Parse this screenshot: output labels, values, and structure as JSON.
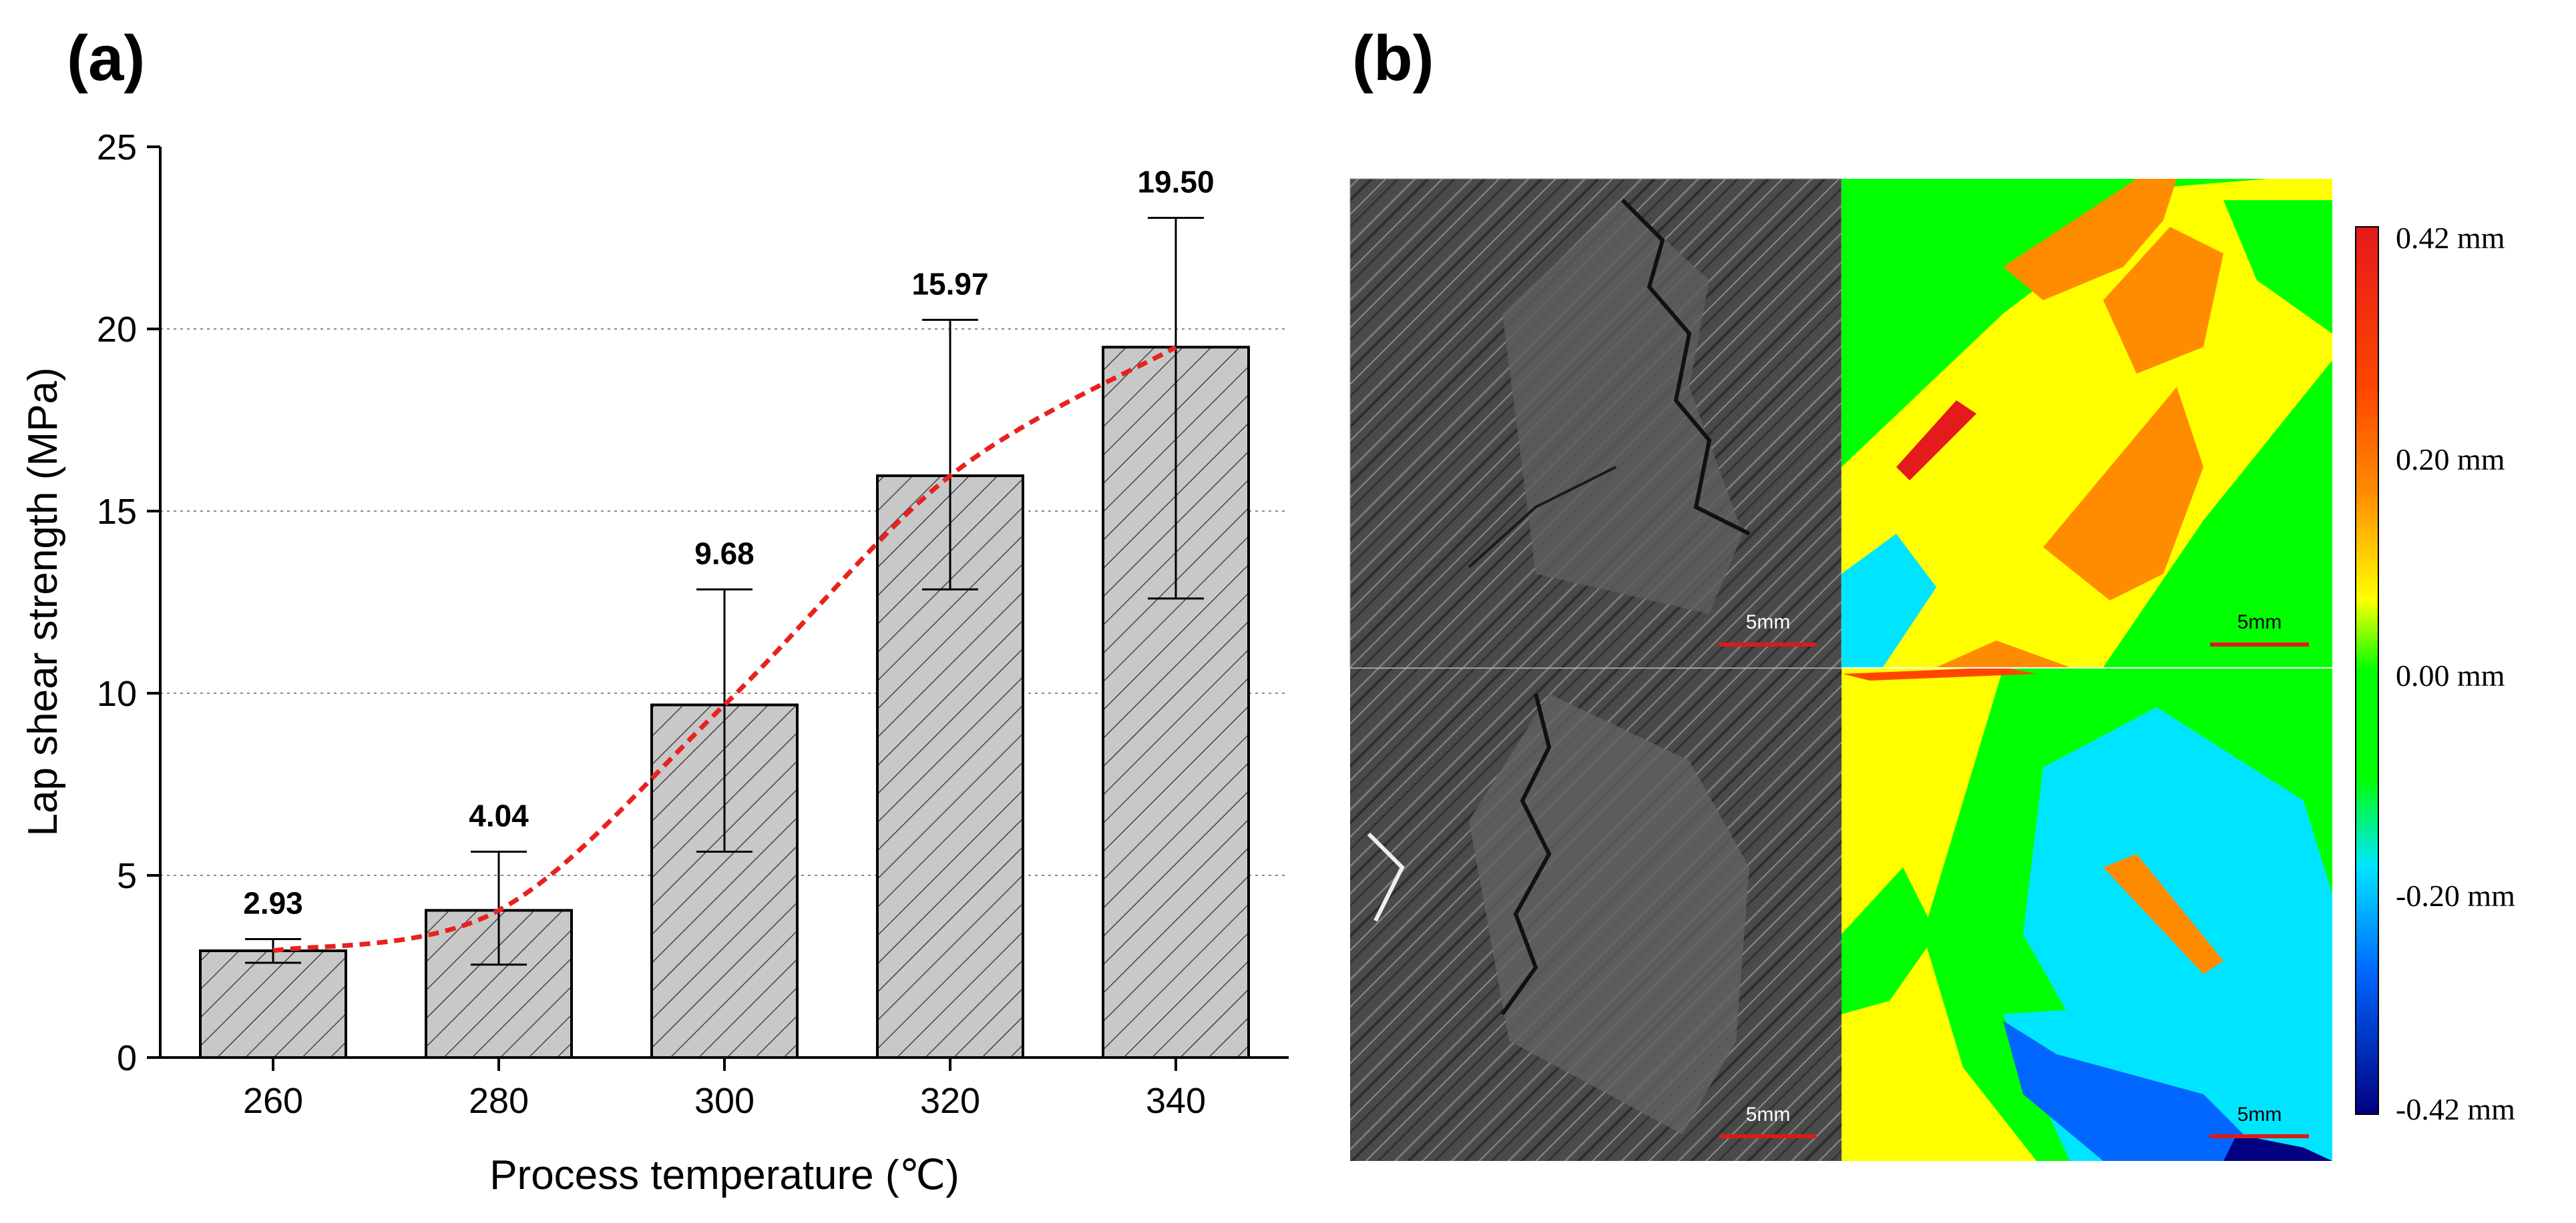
{
  "panel_a_label": "(a)",
  "panel_b_label": "(b)",
  "chart_data": {
    "type": "bar",
    "title": "",
    "xlabel": "Process temperature (℃)",
    "ylabel": "Lap shear strength (MPa)",
    "categories": [
      "260",
      "280",
      "300",
      "320",
      "340"
    ],
    "values": [
      2.93,
      4.04,
      9.68,
      15.97,
      19.5
    ],
    "value_labels": [
      "2.93",
      "4.04",
      "9.68",
      "15.97",
      "19.50"
    ],
    "error_low": [
      2.6,
      2.55,
      5.65,
      12.85,
      12.6
    ],
    "error_high": [
      3.25,
      5.65,
      12.85,
      20.25,
      23.05
    ],
    "ylim": [
      0,
      25
    ],
    "yticks": [
      "0",
      "5",
      "10",
      "15",
      "20",
      "25"
    ],
    "grid": "horizontal dotted",
    "bar_color": "#c8c8c8",
    "trend_color": "#e8221f"
  },
  "fracture_images": {
    "scale_bar_label": "5mm",
    "scale_bar_color": "#dd1a1a",
    "colorbar": {
      "labels": [
        "0.42 mm",
        "0.20 mm",
        "0.00 mm",
        "-0.20 mm",
        "-0.42 mm"
      ],
      "colors": [
        "#e41a1c",
        "#ff8c00",
        "#ffff00",
        "#00ff00",
        "#00e5ff",
        "#0066ff",
        "#000080"
      ]
    }
  }
}
